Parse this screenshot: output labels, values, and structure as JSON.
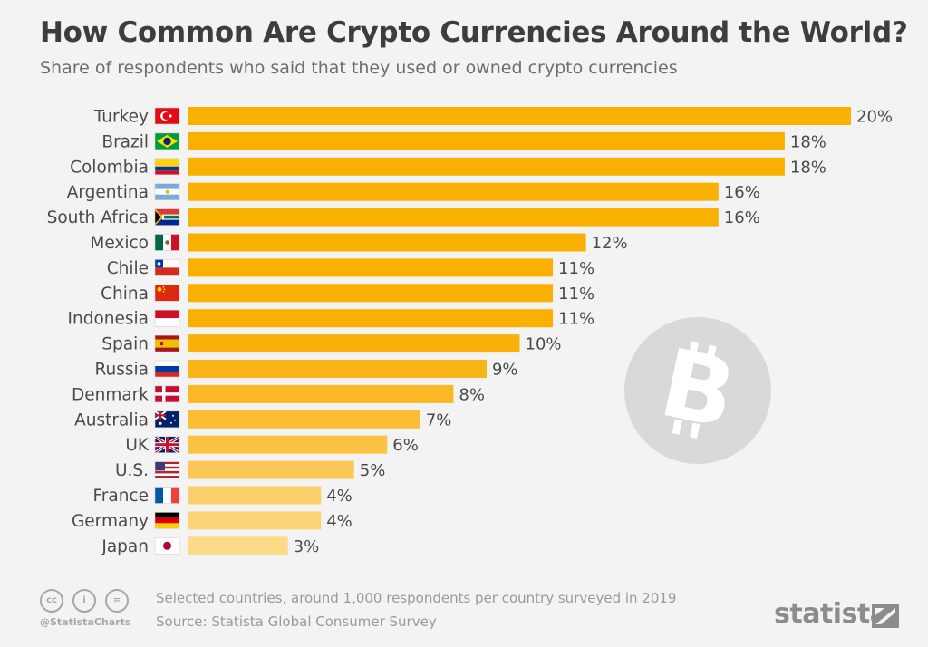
{
  "header": {
    "title": "How Common Are Crypto Currencies Around the World?",
    "subtitle": "Share of respondents who said that they used or owned crypto currencies"
  },
  "colors": {
    "bar_gradient": [
      "#f9b000",
      "#f9b000",
      "#f9b000",
      "#f9b000",
      "#f9b000",
      "#f9b000",
      "#f9b000",
      "#f9b000",
      "#f9b000",
      "#fab20a",
      "#fab417",
      "#fab824",
      "#fabd33",
      "#fbc244",
      "#fbc856",
      "#fccf6a",
      "#fcd579",
      "#fcda87"
    ],
    "label_text": "#4a4a4a",
    "background": "#f3f3f3",
    "watermark": "#d9d9d9"
  },
  "chart_data": {
    "type": "bar",
    "orientation": "horizontal",
    "categories": [
      "Turkey",
      "Brazil",
      "Colombia",
      "Argentina",
      "South Africa",
      "Mexico",
      "Chile",
      "China",
      "Indonesia",
      "Spain",
      "Russia",
      "Denmark",
      "Australia",
      "UK",
      "U.S.",
      "France",
      "Germany",
      "Japan"
    ],
    "values": [
      20,
      18,
      18,
      16,
      16,
      12,
      11,
      11,
      11,
      10,
      9,
      8,
      7,
      6,
      5,
      4,
      4,
      3
    ],
    "value_labels": [
      "20%",
      "18%",
      "18%",
      "16%",
      "16%",
      "12%",
      "11%",
      "11%",
      "11%",
      "10%",
      "9%",
      "8%",
      "7%",
      "6%",
      "5%",
      "4%",
      "4%",
      "3%"
    ],
    "flag_icons": [
      "flag-turkey-icon",
      "flag-brazil-icon",
      "flag-colombia-icon",
      "flag-argentina-icon",
      "flag-south-africa-icon",
      "flag-mexico-icon",
      "flag-chile-icon",
      "flag-china-icon",
      "flag-indonesia-icon",
      "flag-spain-icon",
      "flag-russia-icon",
      "flag-denmark-icon",
      "flag-australia-icon",
      "flag-uk-icon",
      "flag-us-icon",
      "flag-france-icon",
      "flag-germany-icon",
      "flag-japan-icon"
    ],
    "grid": false,
    "axes_visible": false,
    "watermark_icon": "bitcoin-icon"
  },
  "footer": {
    "note": "Selected countries, around 1,000 respondents per country surveyed in 2019",
    "source": "Source: Statista Global Consumer Survey",
    "handle": "@StatistaCharts",
    "cc_icons": [
      "cc",
      "i",
      "="
    ],
    "brand": "statista"
  }
}
